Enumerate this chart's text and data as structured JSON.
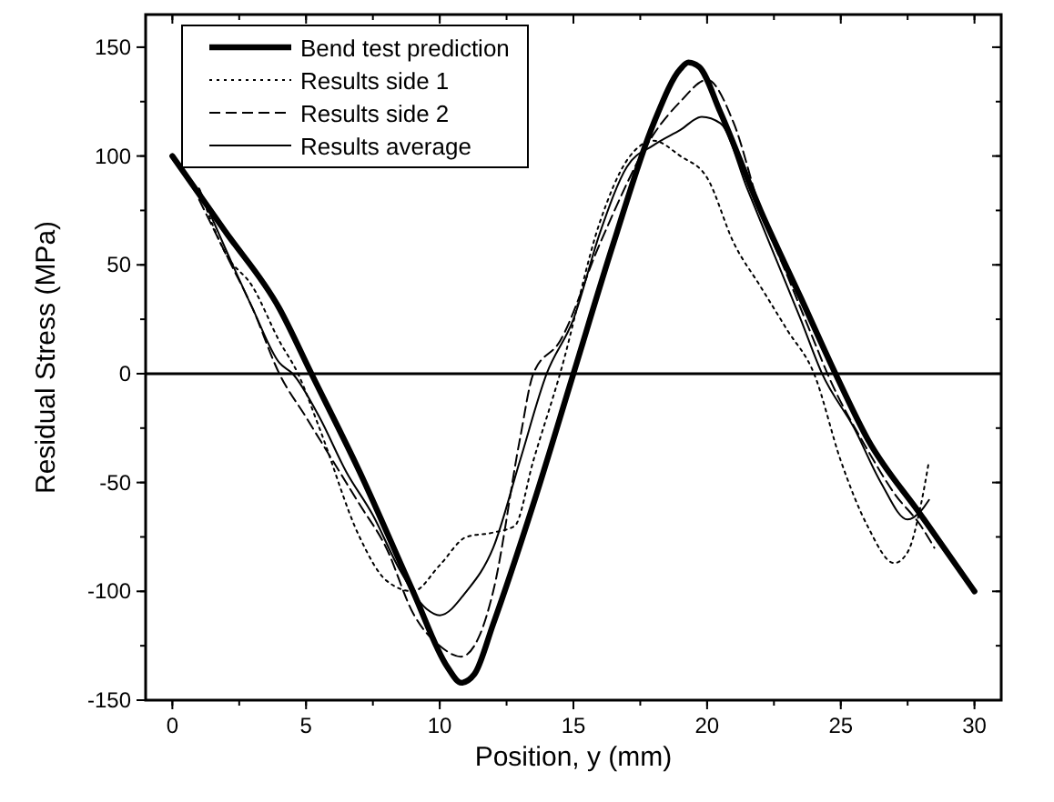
{
  "chart_data": {
    "type": "line",
    "xlabel": "Position, y (mm)",
    "ylabel": "Residual Stress (MPa)",
    "xlim": [
      -1,
      31
    ],
    "ylim": [
      -150,
      165
    ],
    "xticks": [
      0,
      5,
      10,
      15,
      20,
      25,
      30
    ],
    "yticks": [
      -150,
      -100,
      -50,
      0,
      50,
      100,
      150
    ],
    "grid": false,
    "legend": "top left",
    "ref_lines": [
      {
        "axis": "y",
        "value": 0,
        "label": null
      }
    ],
    "series": [
      {
        "name": "Bend test prediction",
        "color": "#000000",
        "line_style": "solid",
        "x": [
          0,
          2,
          4,
          5.2,
          7,
          9,
          10.3,
          10.8,
          11.3,
          12,
          13.5,
          15,
          16.5,
          18,
          19,
          19.3,
          19.7,
          20.5,
          22,
          23.5,
          24.8,
          26,
          28,
          30
        ],
        "values": [
          100,
          65,
          30,
          0,
          -45,
          -100,
          -135,
          -142,
          -138,
          -115,
          -60,
          0,
          60,
          115,
          140,
          143,
          141,
          120,
          75,
          35,
          0,
          -30,
          -65,
          -100
        ]
      },
      {
        "name": "Results side 1",
        "color": "#000000",
        "line_style": "dotted",
        "x": [
          1,
          2,
          3,
          4,
          4.7,
          5.5,
          7,
          8,
          9,
          10,
          11,
          12,
          12.8,
          13.5,
          14.5,
          16,
          17,
          18,
          19,
          20,
          21,
          22,
          23,
          24,
          25,
          26,
          27,
          27.5,
          28,
          28.3
        ],
        "values": [
          85,
          55,
          40,
          15,
          0,
          -25,
          -75,
          -95,
          -100,
          -88,
          -75,
          -73,
          -70,
          -40,
          0,
          70,
          98,
          107,
          100,
          90,
          60,
          40,
          20,
          0,
          -40,
          -70,
          -87,
          -82,
          -60,
          -40
        ]
      },
      {
        "name": "Results side 2",
        "color": "#000000",
        "line_style": "dashed",
        "x": [
          1,
          2,
          3,
          4,
          5,
          6,
          7,
          8,
          9,
          10,
          10.8,
          11.5,
          12,
          13,
          13.5,
          14.5,
          16,
          18,
          19,
          20,
          21,
          22,
          23,
          24,
          24.5,
          26,
          27,
          28,
          28.5
        ],
        "values": [
          80,
          55,
          30,
          0,
          -20,
          -40,
          -60,
          -80,
          -110,
          -125,
          -130,
          -120,
          -100,
          -30,
          0,
          15,
          60,
          110,
          125,
          135,
          115,
          75,
          45,
          15,
          0,
          -35,
          -55,
          -70,
          -80
        ]
      },
      {
        "name": "Results average",
        "color": "#000000",
        "line_style": "solid",
        "x": [
          1,
          2,
          3,
          4,
          4.5,
          5.5,
          6.5,
          7.5,
          8.5,
          9.5,
          10,
          11,
          12,
          13,
          14,
          15,
          16,
          17,
          18,
          19,
          19.8,
          20.5,
          21.5,
          22.5,
          23.5,
          24.3,
          25.5,
          26.5,
          27.5,
          28,
          28.3
        ],
        "values": [
          85,
          57,
          30,
          5,
          0,
          -20,
          -45,
          -65,
          -90,
          -108,
          -111,
          -100,
          -80,
          -40,
          0,
          25,
          65,
          95,
          105,
          112,
          118,
          115,
          85,
          55,
          25,
          0,
          -25,
          -50,
          -67,
          -63,
          -58
        ]
      }
    ]
  }
}
